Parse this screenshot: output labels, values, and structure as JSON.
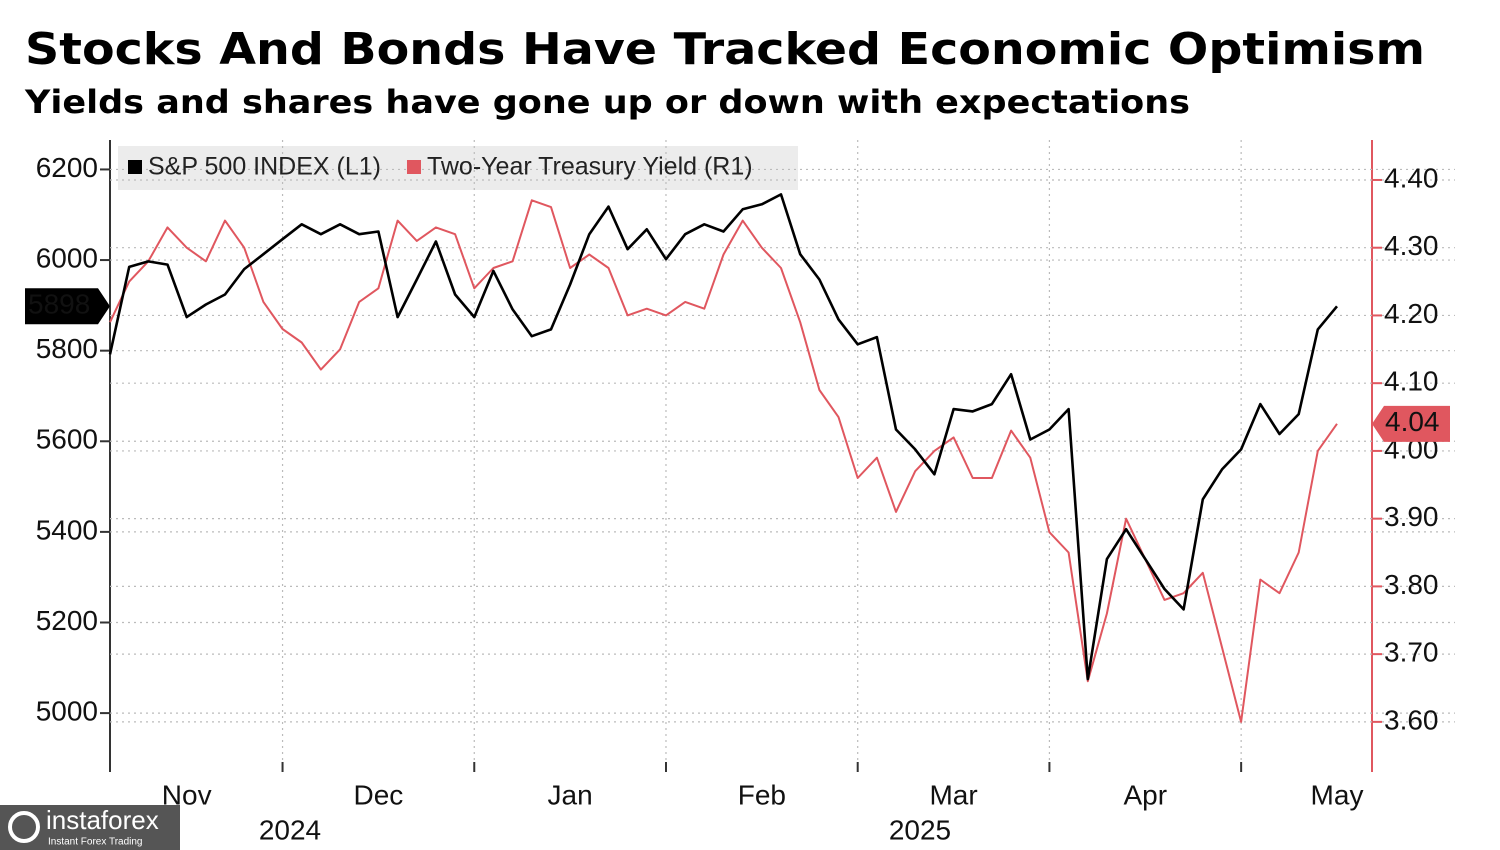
{
  "chart_data": {
    "type": "line",
    "title": "Stocks And Bonds Have Tracked Economic Optimism",
    "subtitle": "Yields and shares have gone up or down with expectations",
    "categories": [
      null,
      null,
      null,
      null,
      "Nov",
      null,
      null,
      null,
      null,
      null,
      null,
      null,
      null,
      null,
      "Dec",
      null,
      null,
      null,
      null,
      null,
      null,
      null,
      null,
      null,
      "Jan",
      null,
      null,
      null,
      null,
      null,
      null,
      null,
      null,
      null,
      "Feb",
      null,
      null,
      null,
      null,
      null,
      null,
      null,
      null,
      null,
      "Mar",
      null,
      null,
      null,
      null,
      null,
      null,
      null,
      null,
      null,
      "Apr",
      null,
      null,
      null,
      null,
      null,
      null,
      null,
      null,
      null,
      "May"
    ],
    "year_labels": [
      "2024",
      "2025"
    ],
    "series": [
      {
        "name": "S&P 500 INDEX (L1)",
        "color": "#000000",
        "axis": "y",
        "values": [
          5792,
          5985,
          5997,
          5990,
          5874,
          5902,
          5924,
          5980,
          6013,
          6046,
          6079,
          6057,
          6079,
          6057,
          6063,
          5874,
          5957,
          6041,
          5924,
          5874,
          5976,
          5891,
          5832,
          5847,
          5946,
          6057,
          6118,
          6024,
          6068,
          6002,
          6057,
          6079,
          6063,
          6112,
          6123,
          6145,
          6013,
          5957,
          5869,
          5814,
          5830,
          5626,
          5582,
          5527,
          5671,
          5666,
          5682,
          5748,
          5604,
          5626,
          5671,
          5075,
          5340,
          5406,
          5340,
          5274,
          5229,
          5472,
          5538,
          5582,
          5682,
          5616,
          5660,
          5847,
          5898
        ]
      },
      {
        "name": "Two-Year Treasury Yield (R1)",
        "color": "#e0575f",
        "axis": "y2",
        "values": [
          4.19,
          4.25,
          4.28,
          4.33,
          4.3,
          4.28,
          4.34,
          4.3,
          4.22,
          4.18,
          4.16,
          4.12,
          4.15,
          4.22,
          4.24,
          4.34,
          4.31,
          4.33,
          4.32,
          4.24,
          4.27,
          4.28,
          4.37,
          4.36,
          4.27,
          4.29,
          4.27,
          4.2,
          4.21,
          4.2,
          4.22,
          4.21,
          4.29,
          4.34,
          4.3,
          4.27,
          4.19,
          4.09,
          4.05,
          3.96,
          3.99,
          3.91,
          3.97,
          4.0,
          4.02,
          3.96,
          3.96,
          4.03,
          3.99,
          3.88,
          3.85,
          3.66,
          3.76,
          3.9,
          3.84,
          3.78,
          3.79,
          3.82,
          3.71,
          3.6,
          3.81,
          3.79,
          3.85,
          4.0,
          4.04
        ]
      }
    ],
    "ylim": [
      4870,
      6265
    ],
    "yticks": [
      5000,
      5200,
      5400,
      5600,
      5800,
      6000,
      6200
    ],
    "y2lim": [
      3.526,
      4.459
    ],
    "y2ticks": [
      {
        "value": 3.6,
        "label": "3.60"
      },
      {
        "value": 3.7,
        "label": "3.70"
      },
      {
        "value": 3.8,
        "label": "3.80"
      },
      {
        "value": 3.9,
        "label": "3.90"
      },
      {
        "value": 4.0,
        "label": "4.00"
      },
      {
        "value": 4.1,
        "label": "4.10"
      },
      {
        "value": 4.2,
        "label": "4.20"
      },
      {
        "value": 4.3,
        "label": "4.30"
      },
      {
        "value": 4.4,
        "label": "4.40"
      }
    ],
    "grid": true,
    "legend": "top-left",
    "watermark": {
      "name": "instaforex",
      "tagline": "Instant Forex Trading"
    }
  }
}
